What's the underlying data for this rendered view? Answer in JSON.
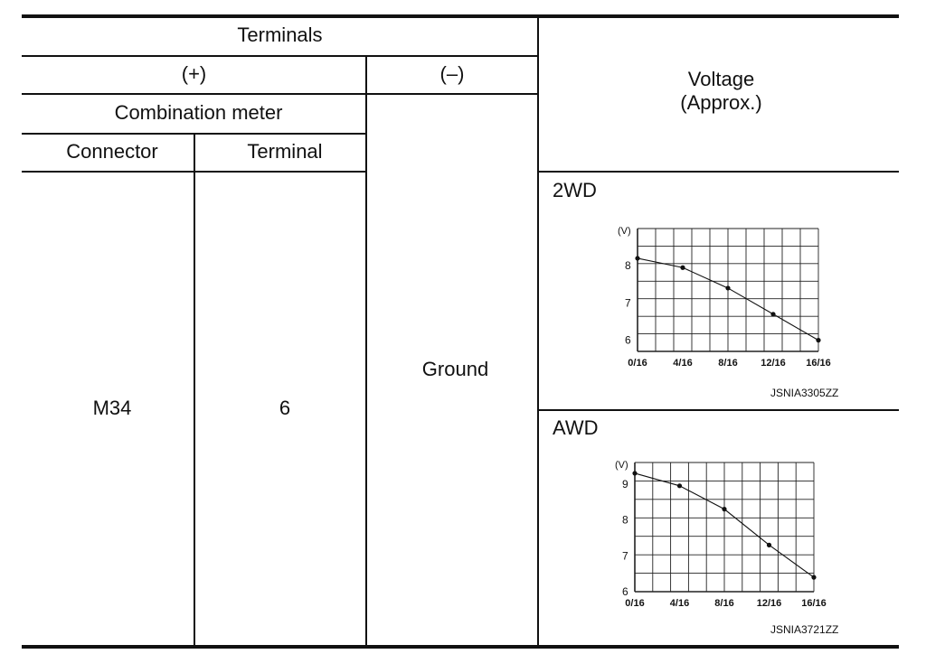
{
  "table": {
    "terminals_header": "Terminals",
    "plus_header": "(+)",
    "minus_header": "(–)",
    "component_header": "Combination meter",
    "connector_header": "Connector",
    "terminal_header": "Terminal",
    "voltage_header_line1": "Voltage",
    "voltage_header_line2": "(Approx.)",
    "connector_value": "M34",
    "terminal_value": "6",
    "minus_value": "Ground"
  },
  "charts": {
    "twd": {
      "label": "2WD",
      "code": "JSNIA3305ZZ"
    },
    "awd": {
      "label": "AWD",
      "code": "JSNIA3721ZZ"
    }
  },
  "chart_data": [
    {
      "type": "line",
      "title": "2WD",
      "ylabel": "(V)",
      "x": [
        "0/16",
        "4/16",
        "8/16",
        "12/16",
        "16/16"
      ],
      "series": [
        {
          "x": [
            0,
            4,
            8,
            12,
            16
          ],
          "values": [
            8.2,
            7.95,
            7.4,
            6.7,
            6.0
          ]
        }
      ],
      "yticks": [
        6,
        7,
        8
      ],
      "ylim": [
        5.7,
        9.0
      ],
      "grid": true
    },
    {
      "type": "line",
      "title": "AWD",
      "ylabel": "(V)",
      "x": [
        "0/16",
        "4/16",
        "8/16",
        "12/16",
        "16/16"
      ],
      "series": [
        {
          "x": [
            0,
            4,
            8,
            12,
            16
          ],
          "values": [
            9.3,
            8.95,
            8.3,
            7.3,
            6.4
          ]
        }
      ],
      "yticks": [
        6,
        7,
        8,
        9
      ],
      "ylim": [
        6.0,
        9.6
      ],
      "grid": true
    }
  ]
}
